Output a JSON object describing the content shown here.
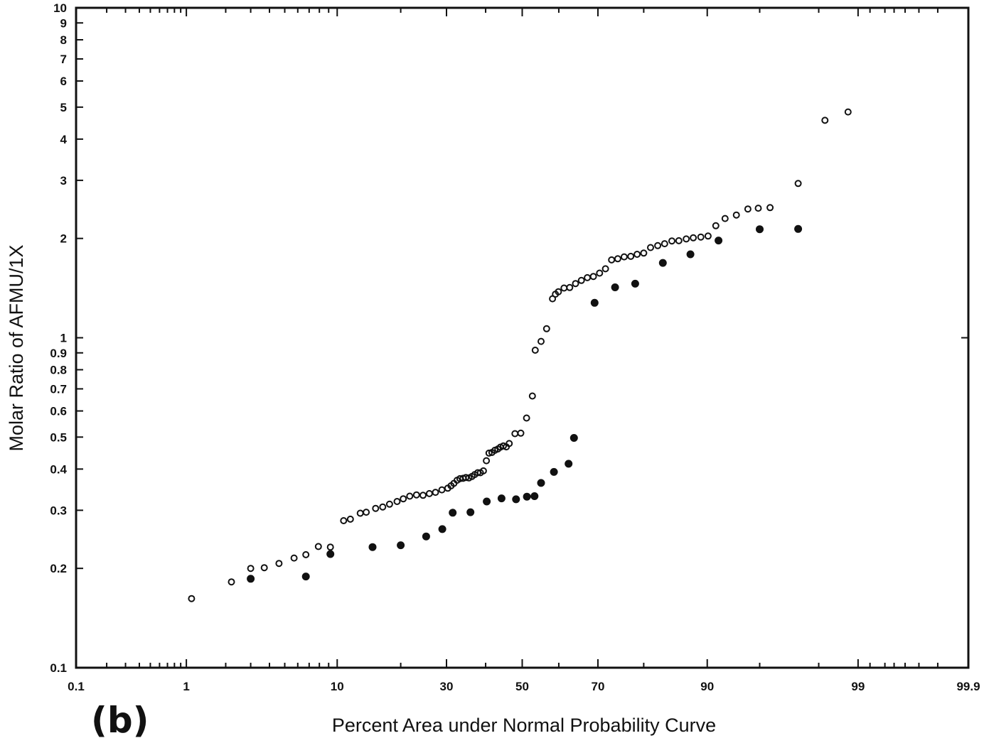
{
  "chart_data": {
    "type": "scatter",
    "title": "",
    "panel_label": "(b)",
    "xlabel": "Percent Area under Normal Probability Curve",
    "ylabel": "Molar Ratio of AFMU/1X",
    "x_scale": "normal-probability",
    "y_scale": "log",
    "xlim": [
      0.1,
      99.9
    ],
    "ylim": [
      0.1,
      10
    ],
    "grid": false,
    "legend": "none",
    "x_ticks": [
      0.1,
      1,
      10,
      30,
      50,
      70,
      90,
      99,
      99.9
    ],
    "x_tick_labels": [
      "0.1",
      "1",
      "10",
      "30",
      "50",
      "70",
      "90",
      "99",
      "99.9"
    ],
    "y_ticks": [
      0.1,
      0.2,
      0.3,
      0.4,
      0.5,
      0.6,
      0.7,
      0.8,
      0.9,
      1,
      2,
      3,
      4,
      5,
      6,
      7,
      8,
      9,
      10
    ],
    "y_tick_labels": [
      "0.1",
      "0.2",
      "0.3",
      "0.4",
      "0.5",
      "0.6",
      "0.7",
      "0.8",
      "0.9",
      "1",
      "2",
      "3",
      "4",
      "5",
      "6",
      "7",
      "8",
      "9",
      "10"
    ],
    "series": [
      {
        "marker": "open-circle",
        "color": "#111111",
        "points": [
          [
            1.1,
            0.162
          ],
          [
            2.2,
            0.182
          ],
          [
            3.0,
            0.2
          ],
          [
            3.7,
            0.201
          ],
          [
            4.6,
            0.207
          ],
          [
            5.7,
            0.215
          ],
          [
            6.7,
            0.22
          ],
          [
            7.9,
            0.233
          ],
          [
            9.2,
            0.232
          ],
          [
            10.8,
            0.279
          ],
          [
            11.7,
            0.282
          ],
          [
            13.1,
            0.294
          ],
          [
            14.0,
            0.296
          ],
          [
            15.5,
            0.304
          ],
          [
            16.7,
            0.307
          ],
          [
            17.9,
            0.313
          ],
          [
            19.3,
            0.319
          ],
          [
            20.5,
            0.325
          ],
          [
            21.8,
            0.331
          ],
          [
            23.2,
            0.334
          ],
          [
            24.6,
            0.333
          ],
          [
            26.0,
            0.337
          ],
          [
            27.4,
            0.34
          ],
          [
            28.9,
            0.346
          ],
          [
            30.3,
            0.35
          ],
          [
            31.1,
            0.356
          ],
          [
            31.8,
            0.362
          ],
          [
            32.6,
            0.37
          ],
          [
            33.3,
            0.374
          ],
          [
            34.1,
            0.375
          ],
          [
            34.8,
            0.377
          ],
          [
            35.6,
            0.376
          ],
          [
            36.4,
            0.38
          ],
          [
            37.1,
            0.385
          ],
          [
            37.9,
            0.39
          ],
          [
            38.6,
            0.39
          ],
          [
            39.4,
            0.395
          ],
          [
            40.2,
            0.424
          ],
          [
            40.9,
            0.447
          ],
          [
            41.7,
            0.449
          ],
          [
            42.5,
            0.456
          ],
          [
            43.3,
            0.46
          ],
          [
            44.0,
            0.466
          ],
          [
            44.8,
            0.47
          ],
          [
            45.6,
            0.467
          ],
          [
            46.4,
            0.478
          ],
          [
            48.0,
            0.512
          ],
          [
            49.6,
            0.514
          ],
          [
            51.2,
            0.571
          ],
          [
            52.8,
            0.666
          ],
          [
            53.6,
            0.917
          ],
          [
            55.2,
            0.975
          ],
          [
            56.7,
            1.065
          ],
          [
            58.3,
            1.313
          ],
          [
            59.1,
            1.356
          ],
          [
            59.9,
            1.379
          ],
          [
            61.4,
            1.415
          ],
          [
            62.9,
            1.42
          ],
          [
            64.4,
            1.46
          ],
          [
            65.9,
            1.492
          ],
          [
            67.4,
            1.521
          ],
          [
            68.9,
            1.534
          ],
          [
            70.4,
            1.57
          ],
          [
            71.8,
            1.618
          ],
          [
            73.2,
            1.722
          ],
          [
            74.6,
            1.735
          ],
          [
            76.0,
            1.759
          ],
          [
            77.4,
            1.765
          ],
          [
            78.7,
            1.79
          ],
          [
            80.0,
            1.806
          ],
          [
            81.3,
            1.877
          ],
          [
            82.6,
            1.902
          ],
          [
            83.8,
            1.928
          ],
          [
            85.0,
            1.965
          ],
          [
            86.1,
            1.968
          ],
          [
            87.2,
            1.993
          ],
          [
            88.2,
            2.009
          ],
          [
            89.2,
            2.02
          ],
          [
            90.1,
            2.034
          ],
          [
            91.0,
            2.185
          ],
          [
            92.0,
            2.299
          ],
          [
            93.1,
            2.355
          ],
          [
            94.1,
            2.457
          ],
          [
            94.9,
            2.47
          ],
          [
            95.7,
            2.48
          ],
          [
            97.2,
            2.935
          ],
          [
            98.2,
            4.561
          ],
          [
            98.8,
            4.834
          ]
        ]
      },
      {
        "marker": "filled-circle",
        "color": "#111111",
        "points": [
          [
            3.0,
            0.186
          ],
          [
            6.7,
            0.189
          ],
          [
            9.2,
            0.221
          ],
          [
            15.0,
            0.232
          ],
          [
            20.0,
            0.235
          ],
          [
            25.3,
            0.25
          ],
          [
            29.0,
            0.263
          ],
          [
            31.5,
            0.295
          ],
          [
            36.0,
            0.296
          ],
          [
            40.3,
            0.319
          ],
          [
            44.3,
            0.326
          ],
          [
            48.3,
            0.324
          ],
          [
            51.3,
            0.33
          ],
          [
            53.4,
            0.331
          ],
          [
            55.2,
            0.363
          ],
          [
            58.7,
            0.392
          ],
          [
            62.6,
            0.415
          ],
          [
            64.0,
            0.497
          ],
          [
            69.2,
            1.276
          ],
          [
            74.0,
            1.422
          ],
          [
            78.3,
            1.458
          ],
          [
            83.5,
            1.686
          ],
          [
            87.8,
            1.79
          ],
          [
            91.3,
            1.971
          ],
          [
            95.0,
            2.133
          ],
          [
            97.2,
            2.137
          ]
        ]
      }
    ]
  }
}
